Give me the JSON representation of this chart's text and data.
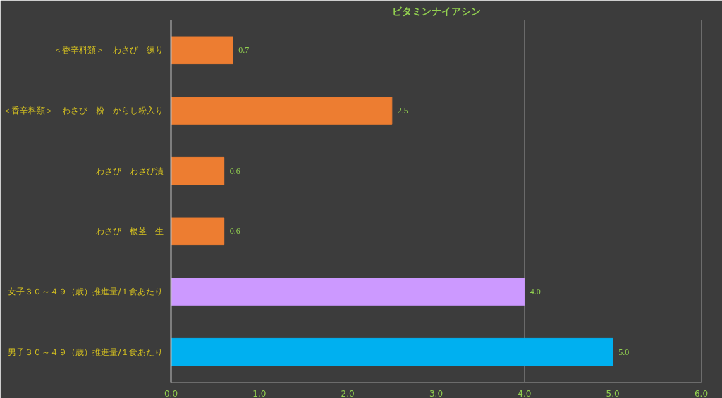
{
  "chart_data": {
    "type": "bar",
    "orientation": "horizontal",
    "title": "ビタミンナイアシン",
    "categories": [
      "＜香辛料類＞　わさび　練り",
      "＜香辛料類＞　わさび　粉　からし粉入り",
      "わさび　わさび漬",
      "わさび　根茎　生",
      "女子３０～４９（歳）推進量/１食あたり",
      "男子３０～４９（歳）推進量/１食あたり"
    ],
    "values": [
      0.7,
      2.5,
      0.6,
      0.6,
      4.0,
      5.0
    ],
    "colors": [
      "#ed7d31",
      "#ed7d31",
      "#ed7d31",
      "#ed7d31",
      "#cc99ff",
      "#00b0f0"
    ],
    "value_labels": [
      "0.7",
      "2.5",
      "0.6",
      "0.6",
      "4.0",
      "5.0"
    ],
    "xlim": [
      0,
      6
    ],
    "xticks": [
      {
        "value": 0,
        "label": "0.0"
      },
      {
        "value": 1,
        "label": "1.0"
      },
      {
        "value": 2,
        "label": "2.0"
      },
      {
        "value": 3,
        "label": "3.0"
      },
      {
        "value": 4,
        "label": "4.0"
      },
      {
        "value": 5,
        "label": "5.0"
      },
      {
        "value": 6,
        "label": "6.0"
      }
    ],
    "grid": "x"
  }
}
